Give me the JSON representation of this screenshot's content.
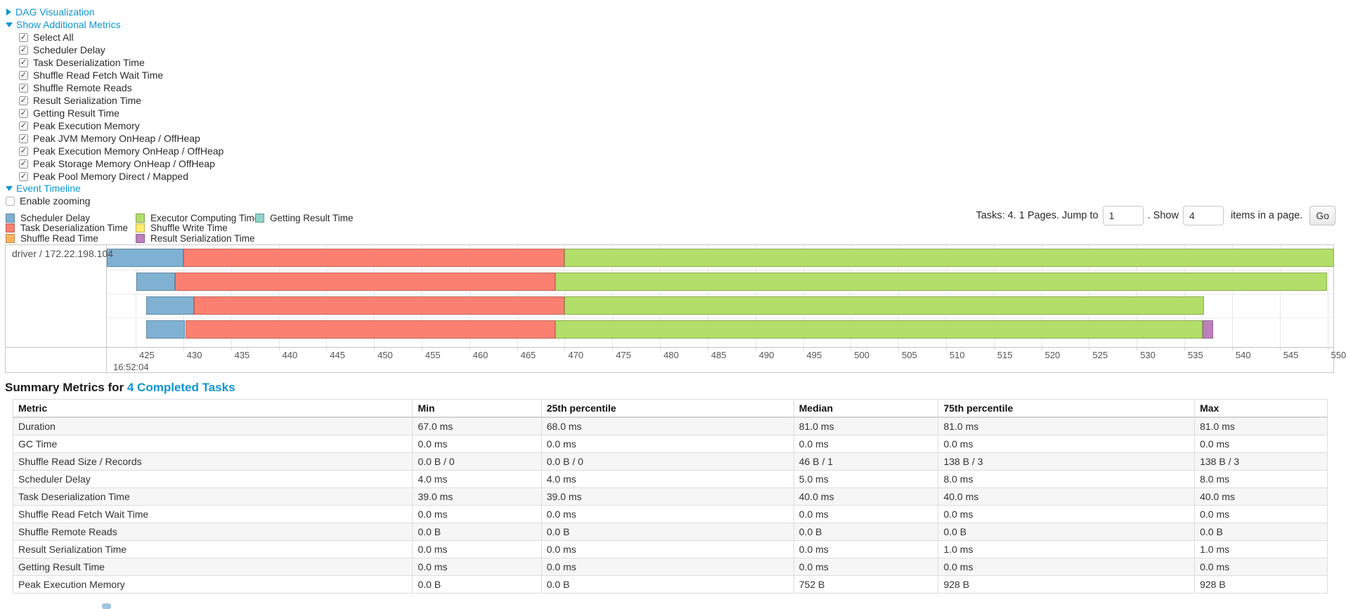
{
  "toggles": {
    "dag_label": "DAG Visualization",
    "metrics_label": "Show Additional Metrics",
    "timeline_label": "Event Timeline",
    "enable_zooming_label": "Enable zooming"
  },
  "metric_checkboxes": [
    "Select All",
    "Scheduler Delay",
    "Task Deserialization Time",
    "Shuffle Read Fetch Wait Time",
    "Shuffle Remote Reads",
    "Result Serialization Time",
    "Getting Result Time",
    "Peak Execution Memory",
    "Peak JVM Memory OnHeap / OffHeap",
    "Peak Execution Memory OnHeap / OffHeap",
    "Peak Storage Memory OnHeap / OffHeap",
    "Peak Pool Memory Direct / Mapped"
  ],
  "legend": {
    "columns": [
      [
        {
          "label": "Scheduler Delay",
          "color": "#80B1D3"
        },
        {
          "label": "Task Deserialization Time",
          "color": "#FB8072"
        },
        {
          "label": "Shuffle Read Time",
          "color": "#FDB462"
        }
      ],
      [
        {
          "label": "Executor Computing Time",
          "color": "#B3DE69"
        },
        {
          "label": "Shuffle Write Time",
          "color": "#FFED6F"
        },
        {
          "label": "Result Serialization Time",
          "color": "#BC80BD"
        }
      ],
      [
        {
          "label": "Getting Result Time",
          "color": "#8DD3C7"
        }
      ]
    ]
  },
  "pagination": {
    "prefix": "Tasks: 4. 1 Pages. Jump to",
    "jump_value": "1",
    "mid": ". Show",
    "show_value": "4",
    "suffix": "items in a page.",
    "go_label": "Go"
  },
  "timeline": {
    "group_label": "driver / 172.22.198.104",
    "axis": {
      "ticks": [
        425,
        430,
        435,
        440,
        445,
        450,
        455,
        460,
        465,
        470,
        475,
        480,
        485,
        490,
        495,
        500,
        505,
        510,
        515,
        520,
        525,
        530,
        535,
        540,
        545,
        550
      ],
      "major_time_label": "16:52:04"
    },
    "colors": {
      "scheduler-delay": "#80B1D3",
      "task-deserialization": "#FB8072",
      "shuffle-read": "#FDB462",
      "executor-computing": "#B3DE69",
      "shuffle-write": "#FFED6F",
      "result-serialization": "#BC80BD",
      "getting-result": "#8DD3C7"
    },
    "tasks": [
      {
        "segments": [
          {
            "type": "scheduler-delay",
            "start": 422.0,
            "end": 430.0
          },
          {
            "type": "task-deserialization",
            "start": 430.0,
            "end": 470.0
          },
          {
            "type": "executor-computing",
            "start": 470.0,
            "end": 550.7
          }
        ]
      },
      {
        "segments": [
          {
            "type": "scheduler-delay",
            "start": 425.1,
            "end": 429.1
          },
          {
            "type": "task-deserialization",
            "start": 429.1,
            "end": 469.0
          },
          {
            "type": "executor-computing",
            "start": 469.0,
            "end": 550.0
          }
        ]
      },
      {
        "segments": [
          {
            "type": "scheduler-delay",
            "start": 426.1,
            "end": 431.1
          },
          {
            "type": "task-deserialization",
            "start": 431.1,
            "end": 470.0
          },
          {
            "type": "executor-computing",
            "start": 470.0,
            "end": 537.1
          }
        ]
      },
      {
        "segments": [
          {
            "type": "scheduler-delay",
            "start": 426.1,
            "end": 430.2
          },
          {
            "type": "task-deserialization",
            "start": 430.2,
            "end": 469.0
          },
          {
            "type": "executor-computing",
            "start": 469.0,
            "end": 536.9
          },
          {
            "type": "result-serialization",
            "start": 536.9,
            "end": 538.0
          }
        ]
      }
    ]
  },
  "summary": {
    "title_prefix": "Summary Metrics for",
    "title_link": "4 Completed Tasks",
    "table": {
      "headers": [
        "Metric",
        "Min",
        "25th percentile",
        "Median",
        "75th percentile",
        "Max"
      ],
      "rows": [
        [
          "Duration",
          "67.0 ms",
          "68.0 ms",
          "81.0 ms",
          "81.0 ms",
          "81.0 ms"
        ],
        [
          "GC Time",
          "0.0 ms",
          "0.0 ms",
          "0.0 ms",
          "0.0 ms",
          "0.0 ms"
        ],
        [
          "Shuffle Read Size / Records",
          "0.0 B / 0",
          "0.0 B / 0",
          "46 B / 1",
          "138 B / 3",
          "138 B / 3"
        ],
        [
          "Scheduler Delay",
          "4.0 ms",
          "4.0 ms",
          "5.0 ms",
          "8.0 ms",
          "8.0 ms"
        ],
        [
          "Task Deserialization Time",
          "39.0 ms",
          "39.0 ms",
          "40.0 ms",
          "40.0 ms",
          "40.0 ms"
        ],
        [
          "Shuffle Read Fetch Wait Time",
          "0.0 ms",
          "0.0 ms",
          "0.0 ms",
          "0.0 ms",
          "0.0 ms"
        ],
        [
          "Shuffle Remote Reads",
          "0.0 B",
          "0.0 B",
          "0.0 B",
          "0.0 B",
          "0.0 B"
        ],
        [
          "Result Serialization Time",
          "0.0 ms",
          "0.0 ms",
          "0.0 ms",
          "1.0 ms",
          "1.0 ms"
        ],
        [
          "Getting Result Time",
          "0.0 ms",
          "0.0 ms",
          "0.0 ms",
          "0.0 ms",
          "0.0 ms"
        ],
        [
          "Peak Execution Memory",
          "0.0 B",
          "0.0 B",
          "752 B",
          "928 B",
          "928 B"
        ]
      ]
    }
  }
}
